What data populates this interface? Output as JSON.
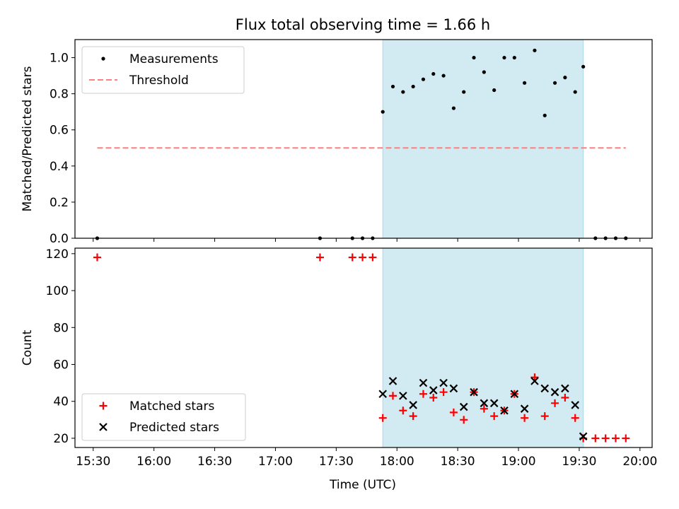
{
  "chart_data": {
    "type": "scatter",
    "title": "Flux total observing time = 1.66 h",
    "xlabel": "Time (UTC)",
    "x_ticks": [
      "15:30",
      "16:00",
      "16:30",
      "17:00",
      "17:30",
      "18:00",
      "18:30",
      "19:00",
      "19:30",
      "20:00"
    ],
    "x_range": [
      "15:21",
      "20:06"
    ],
    "shaded_interval": [
      "17:53",
      "19:32"
    ],
    "colors": {
      "shade": "#add8e6",
      "threshold": "#ff7f7f",
      "matched": "#ff0000",
      "predicted": "#000000",
      "measurements": "#000000"
    },
    "panels": [
      {
        "ylabel": "Matched/Predicted stars",
        "ylim": [
          0,
          1.1
        ],
        "y_ticks": [
          "0.0",
          "0.2",
          "0.4",
          "0.6",
          "0.8",
          "1.0"
        ],
        "legend": {
          "position": "upper left",
          "entries": [
            "Measurements",
            "Threshold"
          ]
        },
        "series": [
          {
            "name": "Measurements",
            "marker": "dot",
            "points": [
              [
                "15:32",
                0.0
              ],
              [
                "17:22",
                0.0
              ],
              [
                "17:38",
                0.0
              ],
              [
                "17:43",
                0.0
              ],
              [
                "17:48",
                0.0
              ],
              [
                "17:53",
                0.7
              ],
              [
                "17:58",
                0.84
              ],
              [
                "18:03",
                0.81
              ],
              [
                "18:08",
                0.84
              ],
              [
                "18:13",
                0.88
              ],
              [
                "18:18",
                0.91
              ],
              [
                "18:23",
                0.9
              ],
              [
                "18:28",
                0.72
              ],
              [
                "18:33",
                0.81
              ],
              [
                "18:38",
                1.0
              ],
              [
                "18:43",
                0.92
              ],
              [
                "18:48",
                0.82
              ],
              [
                "18:53",
                1.0
              ],
              [
                "18:58",
                1.0
              ],
              [
                "19:03",
                0.86
              ],
              [
                "19:08",
                1.04
              ],
              [
                "19:13",
                0.68
              ],
              [
                "19:18",
                0.86
              ],
              [
                "19:23",
                0.89
              ],
              [
                "19:28",
                0.81
              ],
              [
                "19:32",
                0.95
              ],
              [
                "19:38",
                0.0
              ],
              [
                "19:43",
                0.0
              ],
              [
                "19:48",
                0.0
              ],
              [
                "19:53",
                0.0
              ]
            ]
          },
          {
            "name": "Threshold",
            "line": "dashed",
            "points": [
              [
                "15:32",
                0.5
              ],
              [
                "19:53",
                0.5
              ]
            ]
          }
        ]
      },
      {
        "ylabel": "Count",
        "ylim": [
          15,
          123
        ],
        "y_ticks": [
          "20",
          "40",
          "60",
          "80",
          "100",
          "120"
        ],
        "legend": {
          "position": "lower left",
          "entries": [
            "Matched stars",
            "Predicted stars"
          ]
        },
        "series": [
          {
            "name": "Matched stars",
            "marker": "plus",
            "points": [
              [
                "15:32",
                118
              ],
              [
                "17:22",
                118
              ],
              [
                "17:38",
                118
              ],
              [
                "17:43",
                118
              ],
              [
                "17:48",
                118
              ],
              [
                "17:53",
                31
              ],
              [
                "17:58",
                43
              ],
              [
                "18:03",
                35
              ],
              [
                "18:08",
                32
              ],
              [
                "18:13",
                44
              ],
              [
                "18:18",
                42
              ],
              [
                "18:23",
                45
              ],
              [
                "18:28",
                34
              ],
              [
                "18:33",
                30
              ],
              [
                "18:38",
                45
              ],
              [
                "18:43",
                36
              ],
              [
                "18:48",
                32
              ],
              [
                "18:53",
                35
              ],
              [
                "18:58",
                44
              ],
              [
                "19:03",
                31
              ],
              [
                "19:08",
                53
              ],
              [
                "19:13",
                32
              ],
              [
                "19:18",
                39
              ],
              [
                "19:23",
                42
              ],
              [
                "19:28",
                31
              ],
              [
                "19:32",
                20
              ],
              [
                "19:38",
                20
              ],
              [
                "19:43",
                20
              ],
              [
                "19:48",
                20
              ],
              [
                "19:53",
                20
              ]
            ]
          },
          {
            "name": "Predicted stars",
            "marker": "x",
            "points": [
              [
                "17:53",
                44
              ],
              [
                "17:58",
                51
              ],
              [
                "18:03",
                43
              ],
              [
                "18:08",
                38
              ],
              [
                "18:13",
                50
              ],
              [
                "18:18",
                46
              ],
              [
                "18:23",
                50
              ],
              [
                "18:28",
                47
              ],
              [
                "18:33",
                37
              ],
              [
                "18:38",
                45
              ],
              [
                "18:43",
                39
              ],
              [
                "18:48",
                39
              ],
              [
                "18:53",
                35
              ],
              [
                "18:58",
                44
              ],
              [
                "19:03",
                36
              ],
              [
                "19:08",
                51
              ],
              [
                "19:13",
                47
              ],
              [
                "19:18",
                45
              ],
              [
                "19:23",
                47
              ],
              [
                "19:28",
                38
              ],
              [
                "19:32",
                21
              ]
            ]
          }
        ]
      }
    ]
  }
}
